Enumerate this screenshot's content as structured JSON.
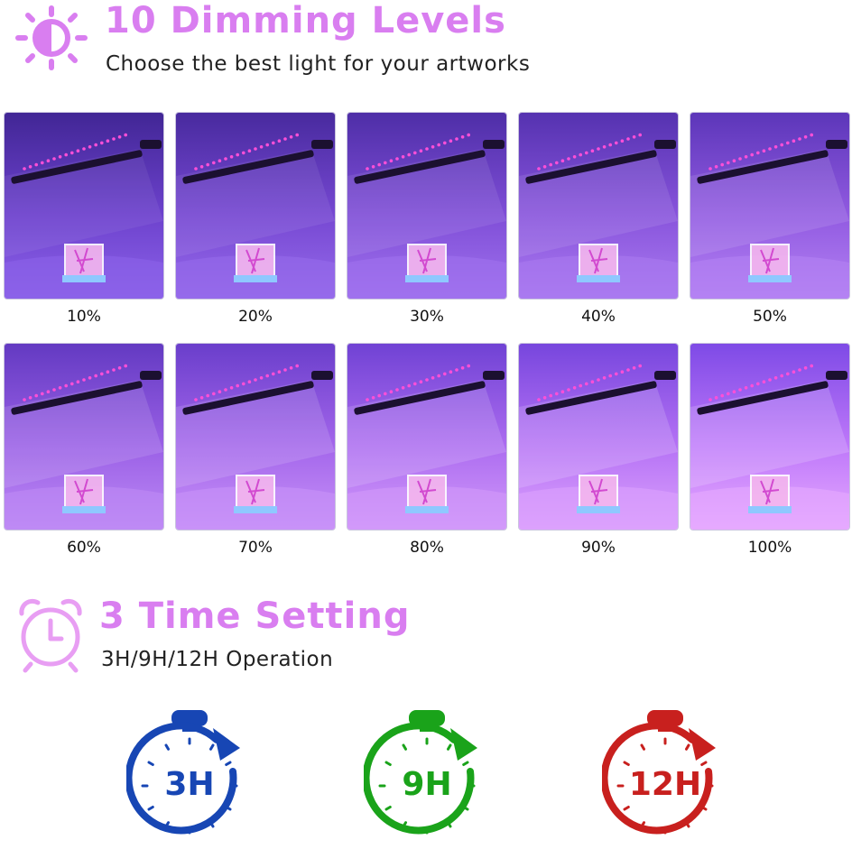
{
  "dimming": {
    "title": "10 Dimming Levels",
    "subtitle": "Choose the best light for your artworks",
    "icon": "sun-half-icon",
    "levels": [
      {
        "label": "10%",
        "value": 10
      },
      {
        "label": "20%",
        "value": 20
      },
      {
        "label": "30%",
        "value": 30
      },
      {
        "label": "40%",
        "value": 40
      },
      {
        "label": "50%",
        "value": 50
      },
      {
        "label": "60%",
        "value": 60
      },
      {
        "label": "70%",
        "value": 70
      },
      {
        "label": "80%",
        "value": 80
      },
      {
        "label": "90%",
        "value": 90
      },
      {
        "label": "100%",
        "value": 100
      }
    ]
  },
  "timer": {
    "title": "3 Time Setting",
    "subtitle": "3H/9H/12H Operation",
    "icon": "alarm-clock-icon",
    "options": [
      {
        "label": "3H",
        "color": "#1746b4"
      },
      {
        "label": "9H",
        "color": "#1aa31a"
      },
      {
        "label": "12H",
        "color": "#c8201e"
      }
    ]
  },
  "colors": {
    "accent": "#d97ef0"
  }
}
